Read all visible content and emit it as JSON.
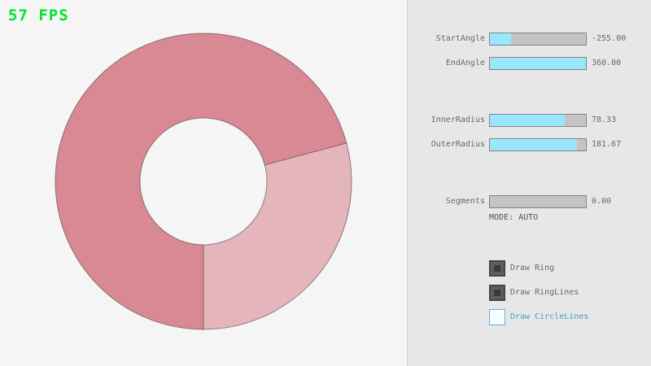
{
  "fps": {
    "text": "57 FPS",
    "color": "#00e430"
  },
  "ring": {
    "base_color": "#d98994",
    "single_pass_color": "#e5b5bc",
    "hole_color": "#f5f5f5"
  },
  "panel": {
    "sliders": [
      {
        "label": "StartAngle",
        "value": "-255.00",
        "percent": 22
      },
      {
        "label": "EndAngle",
        "value": "360.00",
        "percent": 100
      },
      {
        "label": "InnerRadius",
        "value": "78.33",
        "percent": 78
      },
      {
        "label": "OuterRadius",
        "value": "181.67",
        "percent": 91
      },
      {
        "label": "Segments",
        "value": "0.00",
        "percent": 0
      }
    ],
    "mode_text": "MODE: AUTO",
    "checkboxes": [
      {
        "label": "Draw Ring",
        "checked": true,
        "focused": false
      },
      {
        "label": "Draw RingLines",
        "checked": true,
        "focused": false
      },
      {
        "label": "Draw CircleLines",
        "checked": false,
        "focused": true
      }
    ],
    "colors": {
      "slider_fill": "#97e8ff",
      "slider_track": "#c4c4c4",
      "slider_border": "#838383",
      "focus_border": "#5bb2d9",
      "focus_text": "#4a9cc9",
      "label_gray": "#686868"
    }
  }
}
